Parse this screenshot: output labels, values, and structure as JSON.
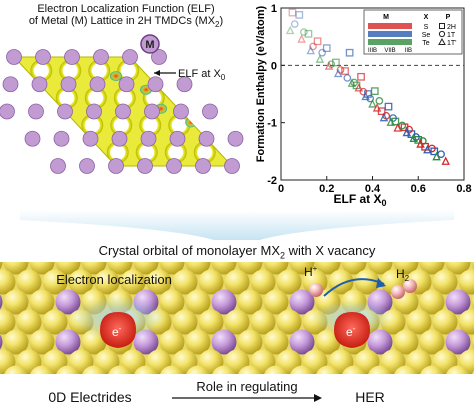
{
  "elf_panel": {
    "title_line1": "Electron Localization Function (ELF)",
    "title_line2": "of Metal (M) Lattice in 2H TMDCs (MX",
    "title_sub": "2",
    "title_close": ")",
    "metal_label": "M",
    "elf_annotation": "ELF at X",
    "elf_annotation_sub": "0"
  },
  "chart_data": {
    "type": "scatter",
    "xlabel": "ELF at X",
    "xlabel_sub": "0",
    "ylabel": "Formation Enthalpy (eV/atom)",
    "xlim": [
      0,
      0.8
    ],
    "ylim": [
      -2,
      1
    ],
    "xticks": [
      "0",
      "0.2",
      "0.4",
      "0.6",
      "0.8"
    ],
    "yticks": [
      "1",
      "0",
      "-1",
      "-2"
    ],
    "grid": false,
    "reference_line_y": 0,
    "legend": {
      "position": "top-right",
      "header_m": "M",
      "header_x": "X",
      "header_p": "P",
      "x_items": [
        "S",
        "Se",
        "Te"
      ],
      "x_colors": [
        "#d62728",
        "#2a5db0",
        "#2e8b3d"
      ],
      "p_items": [
        "2H",
        "1T",
        "1T'"
      ],
      "gradient_from": "IIIB",
      "gradient_mid": "VIIB",
      "gradient_to": "IIB"
    },
    "series": [
      {
        "marker": "square",
        "points": [
          [
            0.05,
            0.92
          ],
          [
            0.08,
            0.88
          ],
          [
            0.12,
            0.55
          ],
          [
            0.16,
            0.42
          ],
          [
            0.2,
            0.3
          ],
          [
            0.24,
            0.05
          ],
          [
            0.28,
            -0.1
          ],
          [
            0.3,
            0.22
          ],
          [
            0.33,
            -0.35
          ],
          [
            0.35,
            -0.2
          ],
          [
            0.38,
            -0.5
          ],
          [
            0.41,
            -0.45
          ],
          [
            0.44,
            -0.8
          ],
          [
            0.47,
            -0.72
          ],
          [
            0.5,
            -0.98
          ],
          [
            0.54,
            -1.08
          ],
          [
            0.57,
            -1.2
          ],
          [
            0.6,
            -1.3
          ],
          [
            0.63,
            -1.42
          ],
          [
            0.67,
            -1.5
          ]
        ]
      },
      {
        "marker": "circle",
        "points": [
          [
            0.06,
            0.72
          ],
          [
            0.1,
            0.58
          ],
          [
            0.14,
            0.33
          ],
          [
            0.18,
            0.22
          ],
          [
            0.22,
            0.02
          ],
          [
            0.26,
            -0.08
          ],
          [
            0.29,
            -0.22
          ],
          [
            0.32,
            -0.3
          ],
          [
            0.36,
            -0.46
          ],
          [
            0.39,
            -0.58
          ],
          [
            0.43,
            -0.62
          ],
          [
            0.46,
            -0.88
          ],
          [
            0.49,
            -0.92
          ],
          [
            0.53,
            -1.05
          ],
          [
            0.56,
            -1.12
          ],
          [
            0.59,
            -1.25
          ],
          [
            0.62,
            -1.32
          ],
          [
            0.66,
            -1.45
          ],
          [
            0.7,
            -1.55
          ]
        ]
      },
      {
        "marker": "triangle",
        "points": [
          [
            0.04,
            0.6
          ],
          [
            0.09,
            0.45
          ],
          [
            0.13,
            0.25
          ],
          [
            0.17,
            0.1
          ],
          [
            0.21,
            -0.02
          ],
          [
            0.25,
            -0.15
          ],
          [
            0.31,
            -0.32
          ],
          [
            0.34,
            -0.4
          ],
          [
            0.37,
            -0.55
          ],
          [
            0.4,
            -0.68
          ],
          [
            0.42,
            -0.75
          ],
          [
            0.45,
            -0.92
          ],
          [
            0.48,
            -1.0
          ],
          [
            0.51,
            -1.1
          ],
          [
            0.55,
            -1.18
          ],
          [
            0.58,
            -1.28
          ],
          [
            0.61,
            -1.38
          ],
          [
            0.64,
            -1.48
          ],
          [
            0.68,
            -1.6
          ],
          [
            0.72,
            -1.68
          ]
        ]
      }
    ]
  },
  "crystal_panel": {
    "title": "Crystal orbital of monolayer MX",
    "title_sub": "2",
    "title_rest": " with X vacancy",
    "electron_label": "Electron localization",
    "electron_symbol": "e",
    "electron_charge": "-",
    "proton_label": "H",
    "proton_charge": "+",
    "h2_label": "H",
    "h2_sub": "2"
  },
  "footer": {
    "left": "0D Electrides",
    "arrow_label": "Role in regulating",
    "right": "HER"
  }
}
